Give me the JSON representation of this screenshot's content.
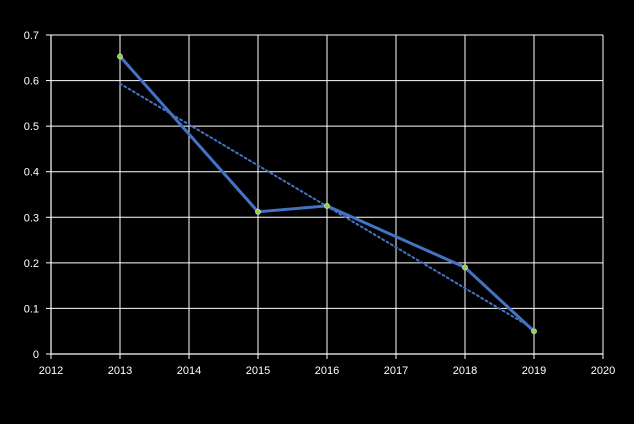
{
  "chart_data": {
    "type": "scatter",
    "title": "",
    "xlabel": "",
    "ylabel": "",
    "xlim": [
      2012,
      2020
    ],
    "ylim": [
      0,
      0.7
    ],
    "x_ticks": [
      "2012",
      "2013",
      "2014",
      "2015",
      "2016",
      "2017",
      "2018",
      "2019",
      "2020"
    ],
    "y_ticks": [
      "0",
      "0.1",
      "0.2",
      "0.3",
      "0.4",
      "0.5",
      "0.6",
      "0.7"
    ],
    "grid": true,
    "legend": "none",
    "series": [
      {
        "x": [
          2013,
          2015,
          2016,
          2018,
          2019
        ],
        "y": [
          0.653,
          0.312,
          0.325,
          0.19,
          0.05
        ],
        "color": "#4472C4",
        "marker_color": "#92D050",
        "line": "solid"
      }
    ],
    "trendline": {
      "type": "linear",
      "style": "dotted",
      "color": "#4472C4"
    },
    "colors": {
      "background": "#000000",
      "grid": "#FFFFFF",
      "text": "#FFFFFF"
    }
  }
}
